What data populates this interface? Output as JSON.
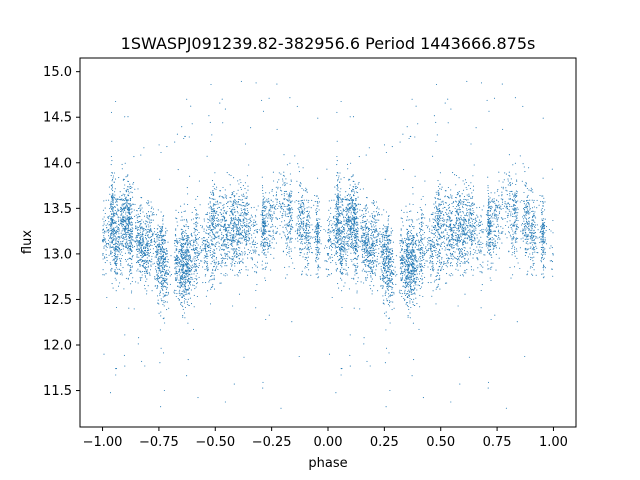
{
  "chart_data": {
    "type": "scatter",
    "title": "1SWASPJ091239.82-382956.6 Period 1443666.875s",
    "xlabel": "phase",
    "ylabel": "flux",
    "xlim": [
      -1.1,
      1.1
    ],
    "ylim": [
      11.1,
      15.15
    ],
    "xticks": [
      -1.0,
      -0.75,
      -0.5,
      -0.25,
      0.0,
      0.25,
      0.5,
      0.75,
      1.0
    ],
    "xtick_labels": [
      "−1.00",
      "−0.75",
      "−0.50",
      "−0.25",
      "0.00",
      "0.25",
      "0.50",
      "0.75",
      "1.00"
    ],
    "yticks": [
      11.5,
      12.0,
      12.5,
      13.0,
      13.5,
      14.0,
      14.5,
      15.0
    ],
    "ytick_labels": [
      "11.5",
      "12.0",
      "12.5",
      "13.0",
      "13.5",
      "14.0",
      "14.5",
      "15.0"
    ],
    "grid": false,
    "point_color": "#1f77b4",
    "series": [
      {
        "phase_range": [
          -1.0,
          1.0
        ],
        "n_points_approx": 9000,
        "typical_flux_band": [
          12.6,
          13.6
        ],
        "median_flux": 13.1,
        "outlier_flux_range": [
          11.3,
          14.9
        ],
        "profile_phase": [
          0.0,
          0.1,
          0.2,
          0.3,
          0.4,
          0.5,
          0.6,
          0.7,
          0.8,
          0.9,
          1.0
        ],
        "profile_median_flux": [
          13.2,
          13.25,
          13.05,
          12.85,
          12.9,
          13.1,
          13.2,
          13.25,
          13.35,
          13.3,
          13.05
        ]
      }
    ]
  }
}
